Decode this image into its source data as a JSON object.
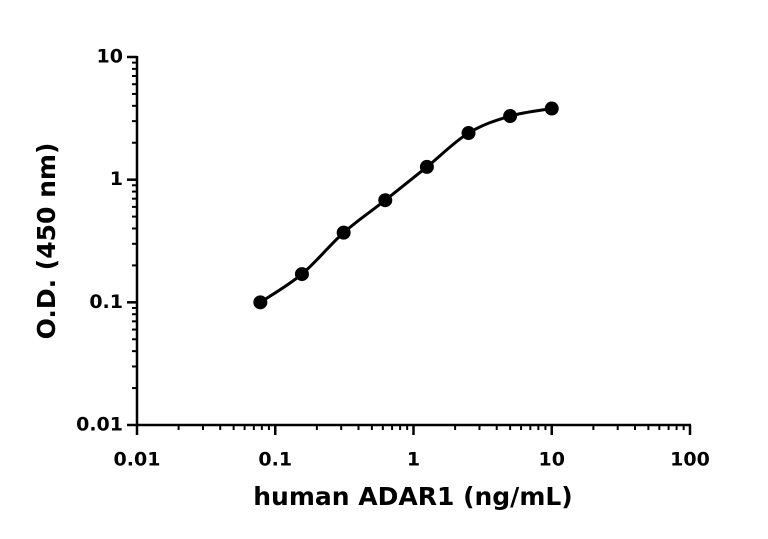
{
  "chart_data": {
    "type": "scatter",
    "x_label": "human ADAR1 (ng/mL)",
    "y_label": "O.D. (450 nm)",
    "x": [
      0.078,
      0.156,
      0.3125,
      0.625,
      1.25,
      2.5,
      5,
      10
    ],
    "series": [
      {
        "color": "#000000",
        "values": [
          0.1,
          0.17,
          0.37,
          0.68,
          1.27,
          2.4,
          3.3,
          3.8
        ]
      }
    ],
    "fit_curve": true,
    "log_x": true,
    "log_y": true,
    "xlim": [
      0.01,
      100
    ],
    "ylim": [
      0.01,
      10
    ],
    "xticks": [
      0.01,
      0.1,
      1,
      10,
      100
    ],
    "yticks": [
      0.01,
      0.1,
      1,
      10
    ]
  }
}
